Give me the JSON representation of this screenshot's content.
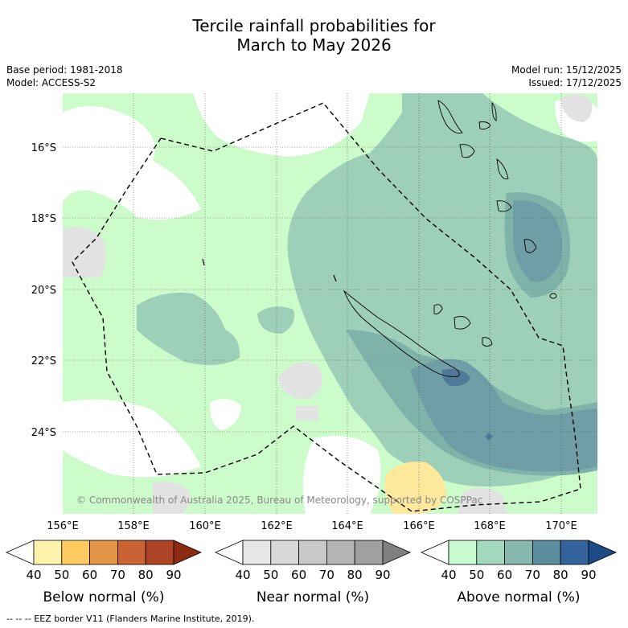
{
  "title": {
    "line1": "Tercile rainfall probabilities for",
    "line2": "March to May 2026"
  },
  "meta": {
    "base_period": "Base period: 1981-2018",
    "model": "Model: ACCESS-S2",
    "model_run": "Model run: 15/12/2025",
    "issued": "Issued: 17/12/2025"
  },
  "map": {
    "lon_ticks": [
      "156°E",
      "158°E",
      "160°E",
      "162°E",
      "164°E",
      "166°E",
      "168°E",
      "170°E"
    ],
    "lat_ticks": [
      "16°S",
      "18°S",
      "20°S",
      "22°S",
      "24°S"
    ],
    "copyright": "© Commonwealth of Australia 2025, Bureau of Meteorology, supported by COSPPac",
    "colors": {
      "ocean_no_signal": "#ffffff",
      "near_normal_40": "#e2e2e2",
      "above_40": "#ccfcca",
      "above_50": "#9ed0b9",
      "above_60": "#7fb3a9",
      "above_70": "#6f9ea6",
      "above_80": "#4e7a98",
      "below_50": "#fde89c"
    }
  },
  "colorbars": [
    {
      "label": "Below normal (%)",
      "ticks": [
        "40",
        "50",
        "60",
        "70",
        "80",
        "90"
      ],
      "colors": [
        "#ffffff",
        "#fff2ac",
        "#fecb60",
        "#e39547",
        "#cb6234",
        "#ae4424",
        "#8c2b14"
      ]
    },
    {
      "label": "Near normal (%)",
      "ticks": [
        "40",
        "50",
        "60",
        "70",
        "80",
        "90"
      ],
      "colors": [
        "#ffffff",
        "#e6e6e6",
        "#d8d8d8",
        "#c8c8c8",
        "#b4b4b4",
        "#a0a0a0",
        "#808080"
      ]
    },
    {
      "label": "Above normal (%)",
      "ticks": [
        "40",
        "50",
        "60",
        "70",
        "80",
        "90"
      ],
      "colors": [
        "#ffffff",
        "#c9fbd0",
        "#a2d8be",
        "#88b8ad",
        "#5b8e9f",
        "#33639a",
        "#1d4b85"
      ]
    }
  ],
  "footer": "--  --  -- EEZ border V11 (Flanders Marine Institute, 2019)."
}
